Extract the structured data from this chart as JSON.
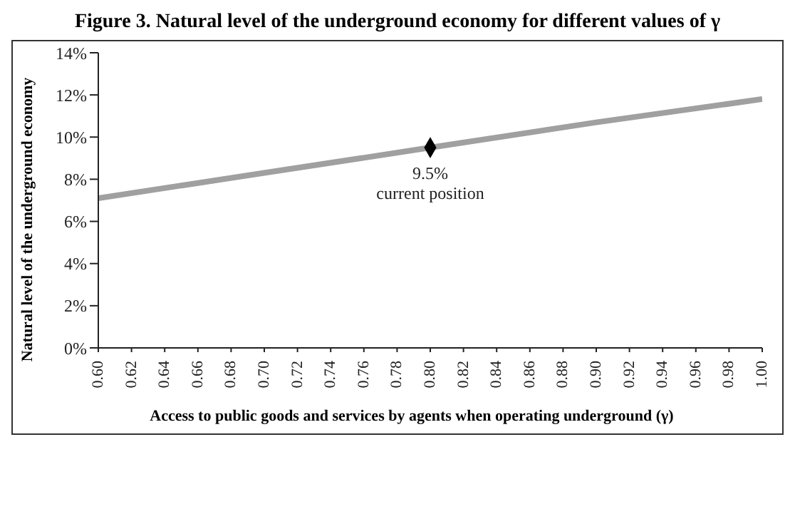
{
  "chart_data": {
    "type": "line",
    "title": "Figure 3. Natural level of the underground economy for different values of γ",
    "xlabel": "Access to public goods and services by agents when operating underground (γ)",
    "ylabel": "Natural level of the underground economy",
    "series": [
      {
        "type": "line",
        "color": "#a0a0a0",
        "marker": "none",
        "x": [
          0.6,
          0.7,
          0.8,
          0.9,
          1.0
        ],
        "values": [
          7.1,
          8.3,
          9.5,
          10.7,
          11.8
        ]
      },
      {
        "type": "scatter",
        "color": "#000000",
        "marker": "diamond",
        "x": [
          0.8
        ],
        "values": [
          9.5
        ]
      }
    ],
    "annotations": [
      {
        "text": "9.5%\ncurrent position",
        "x": 0.8,
        "y": 9.5
      }
    ],
    "xlim": [
      0.6,
      1.0
    ],
    "xticks": [
      {
        "value": 0.6,
        "label": "0.60"
      },
      {
        "value": 0.62,
        "label": "0.62"
      },
      {
        "value": 0.64,
        "label": "0.64"
      },
      {
        "value": 0.66,
        "label": "0.66"
      },
      {
        "value": 0.68,
        "label": "0.68"
      },
      {
        "value": 0.7,
        "label": "0.70"
      },
      {
        "value": 0.72,
        "label": "0.72"
      },
      {
        "value": 0.74,
        "label": "0.74"
      },
      {
        "value": 0.76,
        "label": "0.76"
      },
      {
        "value": 0.78,
        "label": "0.78"
      },
      {
        "value": 0.8,
        "label": "0.80"
      },
      {
        "value": 0.82,
        "label": "0.82"
      },
      {
        "value": 0.84,
        "label": "0.84"
      },
      {
        "value": 0.86,
        "label": "0.86"
      },
      {
        "value": 0.88,
        "label": "0.88"
      },
      {
        "value": 0.9,
        "label": "0.90"
      },
      {
        "value": 0.92,
        "label": "0.92"
      },
      {
        "value": 0.94,
        "label": "0.94"
      },
      {
        "value": 0.96,
        "label": "0.96"
      },
      {
        "value": 0.98,
        "label": "0.98"
      },
      {
        "value": 1.0,
        "label": "1.00"
      }
    ],
    "ylim": [
      0,
      14
    ],
    "yticks": [
      {
        "value": 0,
        "label": "0%"
      },
      {
        "value": 2,
        "label": "2%"
      },
      {
        "value": 4,
        "label": "4%"
      },
      {
        "value": 6,
        "label": "6%"
      },
      {
        "value": 8,
        "label": "8%"
      },
      {
        "value": 10,
        "label": "10%"
      },
      {
        "value": 12,
        "label": "12%"
      },
      {
        "value": 14,
        "label": "14%"
      }
    ]
  }
}
